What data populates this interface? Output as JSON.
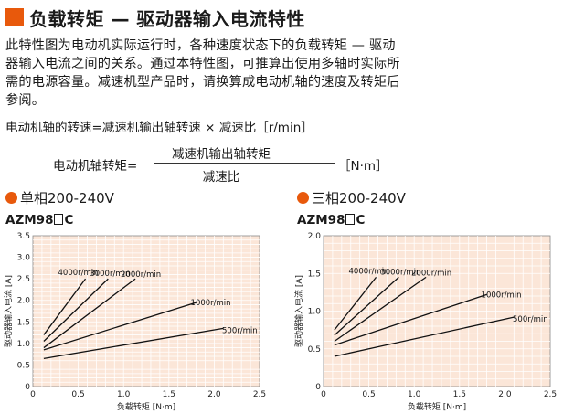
{
  "title": "负载转矩 — 驱动器输入电流特性",
  "intro_lines": [
    "此特性图为电动机实际运行时，各种速度状态下的负载转矩 — 驱动",
    "器输入电流之间的关系。通过本特性图，可推算出使用多轴时实际所",
    "需的电源容量。减速机型产品时，请换算成电动机轴的速度及转矩后",
    "参阅。"
  ],
  "formula_speed": "电动机轴的转速=减速机输出轴转速 × 减速比［r/min］",
  "formula_torque": {
    "lhs": "电动机轴转矩=",
    "numerator": "减速机输出轴转矩",
    "denominator": "减速比",
    "unit": "［N·m］"
  },
  "colors": {
    "accent": "#e8590c",
    "plot_bg": "#fbe6d8",
    "grid": "#ffffff",
    "line": "#111111"
  },
  "chart_data": [
    {
      "type": "line",
      "heading": "单相200-240V",
      "model": [
        "AZM98",
        "C"
      ],
      "xlabel": "负载转矩 [N·m]",
      "ylabel": "驱动器输入电流 [A]",
      "xlim": [
        0,
        2.5
      ],
      "ylim": [
        0,
        3.5
      ],
      "xticks": [
        "0",
        "0.5",
        "1.0",
        "1.5",
        "2.0",
        "2.5"
      ],
      "yticks": [
        "0",
        "0.5",
        "1.0",
        "1.5",
        "2.0",
        "2.5",
        "3.0",
        "3.5"
      ],
      "grid": true,
      "series": [
        {
          "name": "4000r/min",
          "x": [
            0.12,
            0.58
          ],
          "y": [
            1.2,
            2.5
          ]
        },
        {
          "name": "3000r/min",
          "x": [
            0.12,
            0.83
          ],
          "y": [
            1.05,
            2.5
          ]
        },
        {
          "name": "2000r/min",
          "x": [
            0.12,
            1.13
          ],
          "y": [
            0.9,
            2.5
          ]
        },
        {
          "name": "1000r/min",
          "x": [
            0.12,
            1.8
          ],
          "y": [
            0.85,
            1.95
          ]
        },
        {
          "name": "500r/min",
          "x": [
            0.12,
            2.1
          ],
          "y": [
            0.65,
            1.35
          ]
        }
      ]
    },
    {
      "type": "line",
      "heading": "三相200-240V",
      "model": [
        "AZM98",
        "C"
      ],
      "xlabel": "负载转矩 [N·m]",
      "ylabel": "驱动器输入电流 [A]",
      "xlim": [
        0,
        2.5
      ],
      "ylim": [
        0,
        2.0
      ],
      "xticks": [
        "0",
        "0.5",
        "1.0",
        "1.5",
        "2.0",
        "2.5"
      ],
      "yticks": [
        "0",
        "0.5",
        "1.0",
        "1.5",
        "2.0"
      ],
      "grid": true,
      "series": [
        {
          "name": "4000r/min",
          "x": [
            0.12,
            0.58
          ],
          "y": [
            0.75,
            1.45
          ]
        },
        {
          "name": "3000r/min",
          "x": [
            0.12,
            0.83
          ],
          "y": [
            0.68,
            1.45
          ]
        },
        {
          "name": "2000r/min",
          "x": [
            0.12,
            1.13
          ],
          "y": [
            0.6,
            1.45
          ]
        },
        {
          "name": "1000r/min",
          "x": [
            0.12,
            1.8
          ],
          "y": [
            0.55,
            1.22
          ]
        },
        {
          "name": "500r/min",
          "x": [
            0.12,
            2.1
          ],
          "y": [
            0.4,
            0.92
          ]
        }
      ]
    }
  ]
}
